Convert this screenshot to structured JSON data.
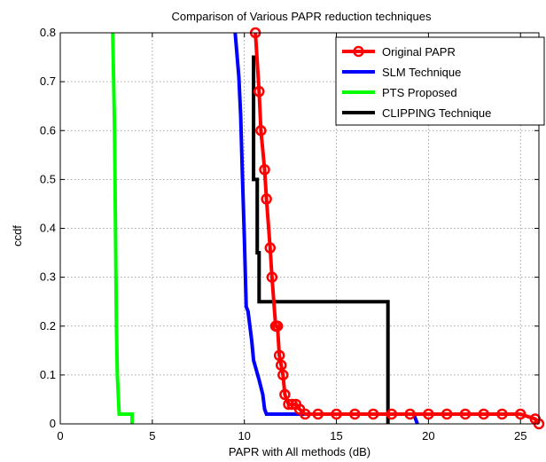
{
  "chart_data": {
    "type": "line",
    "title": "Comparison of Various PAPR reduction techniques",
    "xlabel": "PAPR with All methods (dB)",
    "ylabel": "ccdf",
    "xlim": [
      0,
      26
    ],
    "ylim": [
      0,
      0.8
    ],
    "xticks": [
      0,
      5,
      10,
      15,
      20,
      25
    ],
    "yticks": [
      0,
      0.1,
      0.2,
      0.3,
      0.4,
      0.5,
      0.6,
      0.7,
      0.8
    ],
    "xtick_labels": [
      "0",
      "5",
      "10",
      "15",
      "20",
      "25"
    ],
    "ytick_labels": [
      "0",
      "0.1",
      "0.2",
      "0.3",
      "0.4",
      "0.5",
      "0.6",
      "0.7",
      "0.8"
    ],
    "grid": true,
    "legend_position": "top-right",
    "series": [
      {
        "name": "Original PAPR",
        "color": "#ff0000",
        "marker": "circle",
        "x": [
          10.6,
          10.8,
          10.9,
          11.1,
          11.2,
          11.4,
          11.5,
          11.7,
          11.8,
          11.9,
          12.0,
          12.1,
          12.2,
          12.4,
          12.6,
          12.8,
          13.0,
          13.3,
          14.0,
          15.0,
          16.0,
          17.0,
          18.0,
          19.0,
          20.0,
          21.0,
          22.0,
          23.0,
          24.0,
          25.0,
          25.8,
          26.0
        ],
        "y": [
          0.8,
          0.68,
          0.6,
          0.52,
          0.46,
          0.36,
          0.3,
          0.2,
          0.2,
          0.14,
          0.12,
          0.1,
          0.06,
          0.04,
          0.04,
          0.04,
          0.03,
          0.02,
          0.02,
          0.02,
          0.02,
          0.02,
          0.02,
          0.02,
          0.02,
          0.02,
          0.02,
          0.02,
          0.02,
          0.02,
          0.01,
          0.0
        ]
      },
      {
        "name": "SLM Technique",
        "color": "#0000ff",
        "x": [
          9.5,
          9.7,
          9.8,
          9.9,
          10.0,
          10.1,
          10.2,
          10.4,
          10.5,
          10.8,
          11.0,
          11.1,
          11.2,
          13.0,
          15.0,
          19.2,
          19.4
        ],
        "y": [
          0.8,
          0.71,
          0.63,
          0.5,
          0.38,
          0.24,
          0.23,
          0.17,
          0.13,
          0.09,
          0.06,
          0.03,
          0.02,
          0.02,
          0.02,
          0.02,
          0.0
        ]
      },
      {
        "name": "PTS Proposed",
        "color": "#00ff00",
        "x": [
          2.85,
          2.95,
          3.0,
          3.05,
          3.1,
          3.15,
          3.2,
          3.9,
          3.9
        ],
        "y": [
          0.8,
          0.6,
          0.4,
          0.2,
          0.1,
          0.06,
          0.02,
          0.02,
          0.0
        ]
      },
      {
        "name": "CLIPPING Technique",
        "color": "#000000",
        "x": [
          10.4,
          10.5,
          10.5,
          10.7,
          10.7,
          10.8,
          10.8,
          17.8,
          17.8
        ],
        "y": [
          0.75,
          0.75,
          0.5,
          0.5,
          0.35,
          0.35,
          0.25,
          0.25,
          0.0
        ]
      }
    ]
  }
}
